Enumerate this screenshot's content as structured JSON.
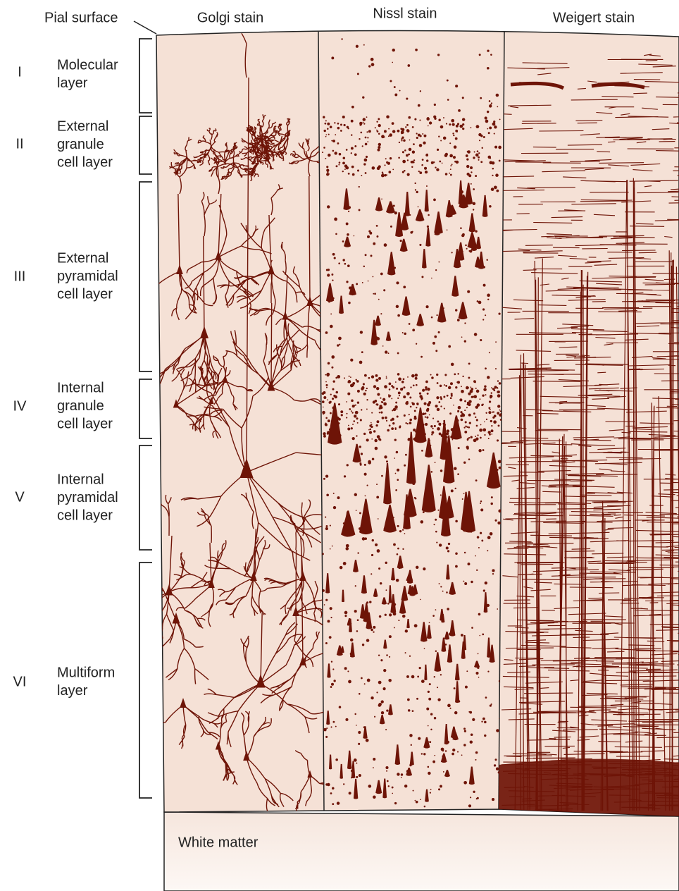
{
  "pial_surface": "Pial surface",
  "columns": [
    "Golgi stain",
    "Nissl stain",
    "Weigert stain"
  ],
  "layers": [
    {
      "numeral": "I",
      "label": [
        "Molecular",
        "layer"
      ]
    },
    {
      "numeral": "II",
      "label": [
        "External",
        "granule",
        "cell layer"
      ]
    },
    {
      "numeral": "III",
      "label": [
        "External",
        "pyramidal",
        "cell layer"
      ]
    },
    {
      "numeral": "IV",
      "label": [
        "Internal",
        "granule",
        "cell layer"
      ]
    },
    {
      "numeral": "V",
      "label": [
        "Internal",
        "pyramidal",
        "cell layer"
      ]
    },
    {
      "numeral": "VI",
      "label": [
        "Multiform",
        "layer"
      ]
    }
  ],
  "white_matter": "White matter"
}
